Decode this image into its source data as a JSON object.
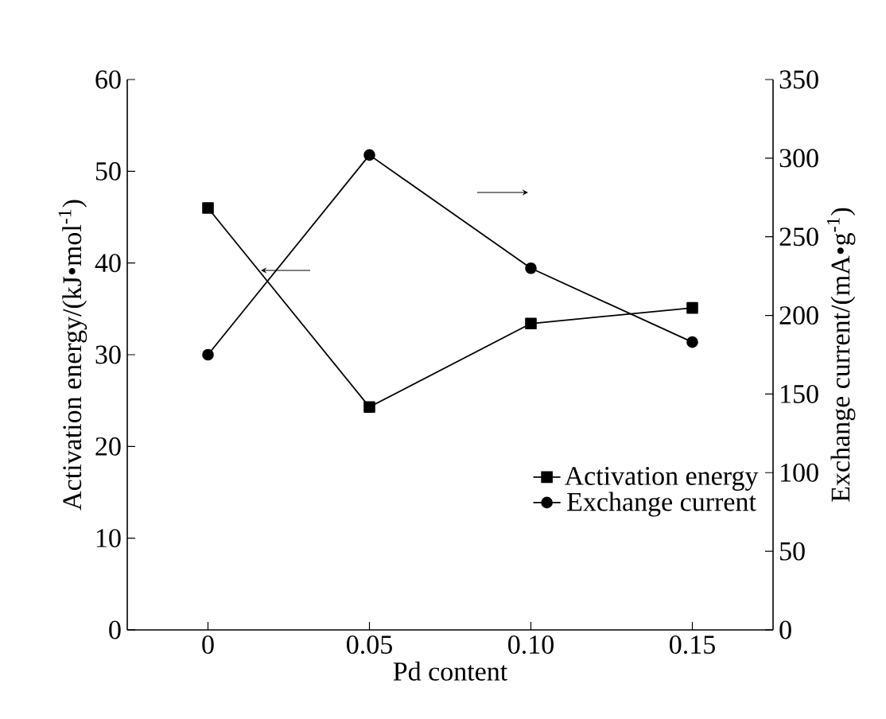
{
  "chart_data": {
    "type": "line",
    "xlabel": "Pd content",
    "ylabel": "Activation energy/(kJ•mol$^{-1}$)",
    "y2label": "Exchange current/(mA•g$^{-1}$)",
    "x": [
      0,
      0.05,
      0.1,
      0.15
    ],
    "xlim": [
      -0.025,
      0.175
    ],
    "xticks": [
      0,
      0.05,
      {
        "value": 0.1,
        "label": "0.10"
      },
      0.15
    ],
    "ylim": [
      0,
      60
    ],
    "yticks": [
      0,
      10,
      20,
      30,
      40,
      50,
      60
    ],
    "y2lim": [
      0,
      350
    ],
    "y2ticks": [
      0,
      50,
      100,
      150,
      200,
      250,
      300,
      350
    ],
    "legend": "bottom right",
    "grid": false,
    "series": [
      {
        "name": "Activation energy",
        "color": "#000000",
        "marker": "square",
        "values": [
          46.0,
          24.3,
          33.4,
          35.1
        ]
      },
      {
        "name": "Exchange current",
        "color": "#000000",
        "marker": "circle",
        "axis": "y2",
        "values": [
          175,
          302,
          230,
          183
        ]
      }
    ]
  }
}
